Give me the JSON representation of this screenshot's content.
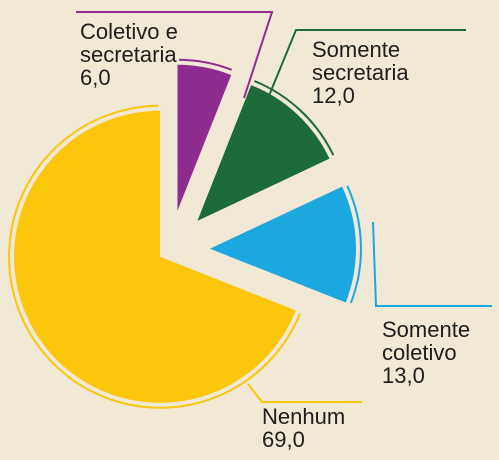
{
  "chart_data": {
    "type": "pie",
    "categories": [
      "Coletivo e secretaria",
      "Somente secretaria",
      "Somente coletivo",
      "Nenhum"
    ],
    "values": [
      6,
      12,
      13,
      69
    ],
    "value_labels": [
      "6,0",
      "12,0",
      "13,0",
      "69,0"
    ],
    "colors": [
      "#8e2c8f",
      "#1d6a3a",
      "#1ba7e0",
      "#fcc70b"
    ]
  }
}
